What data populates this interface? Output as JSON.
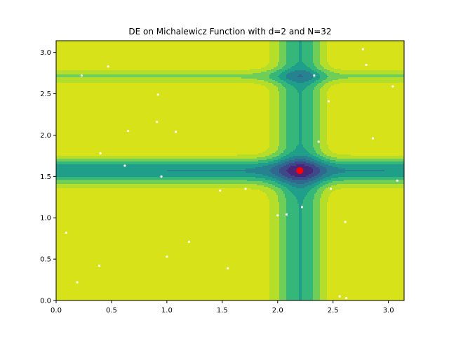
{
  "chart_data": {
    "type": "contour_scatter",
    "title": "DE on Michalewicz Function with d=2 and N=32",
    "xlabel": "",
    "ylabel": "",
    "xlim": [
      0,
      3.14159
    ],
    "ylim": [
      0,
      3.14159
    ],
    "x_ticks": [
      "0.0",
      "0.5",
      "1.0",
      "1.5",
      "2.0",
      "2.5",
      "3.0"
    ],
    "y_ticks": [
      "0.0",
      "0.5",
      "1.0",
      "1.5",
      "2.0",
      "2.5",
      "3.0"
    ],
    "function": "michalewicz",
    "michalewicz_m": 10,
    "contour_levels": [
      -1.8,
      -1.6,
      -1.4,
      -1.2,
      -1.0,
      -0.8,
      -0.6,
      -0.4,
      -0.2,
      0.0
    ],
    "contour_colors": [
      "#440154",
      "#482878",
      "#3e4989",
      "#31688e",
      "#26828e",
      "#1f9e89",
      "#35b779",
      "#6ece58",
      "#b5de2b",
      "#d8e219"
    ],
    "population": [
      [
        0.23,
        2.72
      ],
      [
        0.47,
        2.83
      ],
      [
        0.92,
        2.49
      ],
      [
        0.91,
        2.16
      ],
      [
        0.65,
        2.05
      ],
      [
        1.08,
        2.04
      ],
      [
        0.4,
        1.78
      ],
      [
        0.62,
        1.63
      ],
      [
        0.95,
        1.5
      ],
      [
        1.48,
        1.33
      ],
      [
        1.71,
        1.35
      ],
      [
        2.0,
        1.03
      ],
      [
        2.08,
        1.04
      ],
      [
        2.22,
        1.13
      ],
      [
        2.33,
        2.72
      ],
      [
        2.46,
        2.41
      ],
      [
        2.37,
        1.92
      ],
      [
        2.77,
        3.04
      ],
      [
        2.8,
        2.85
      ],
      [
        3.04,
        2.59
      ],
      [
        2.86,
        1.96
      ],
      [
        2.48,
        1.35
      ],
      [
        3.08,
        1.45
      ],
      [
        2.61,
        0.95
      ],
      [
        0.09,
        0.82
      ],
      [
        1.2,
        0.71
      ],
      [
        1.0,
        0.53
      ],
      [
        0.39,
        0.42
      ],
      [
        1.55,
        0.39
      ],
      [
        0.19,
        0.22
      ],
      [
        2.56,
        0.05
      ],
      [
        2.62,
        0.03
      ]
    ],
    "best": [
      2.2,
      1.57
    ],
    "population_color": "#ffffff",
    "best_color": "#ff0000"
  }
}
